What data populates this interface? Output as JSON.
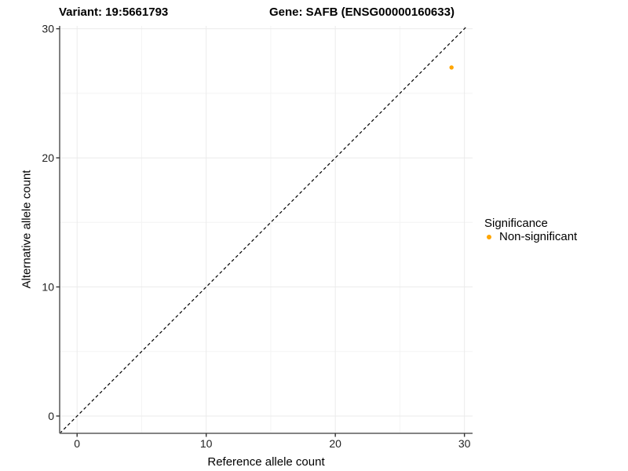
{
  "header": {
    "variant_title": "Variant: 19:5661793",
    "gene_title": "Gene: SAFB (ENSG00000160633)"
  },
  "legend": {
    "title": "Significance",
    "items": [
      {
        "label": "Non-significant",
        "color": "#FFA500"
      }
    ]
  },
  "chart_data": {
    "type": "scatter",
    "title": "Variant: 19:5661793  Gene: SAFB (ENSG00000160633)",
    "xlabel": "Reference allele count",
    "ylabel": "Alternative allele count",
    "xlim": [
      -1.35,
      30.63
    ],
    "ylim": [
      -1.34,
      30.22
    ],
    "x_ticks": [
      0,
      10,
      20,
      30
    ],
    "y_ticks": [
      0,
      10,
      20,
      30
    ],
    "x_minor_ticks": [
      5,
      15,
      25
    ],
    "y_minor_ticks": [
      5,
      15,
      25
    ],
    "grid": true,
    "legend_position": "right",
    "series": [
      {
        "name": "Non-significant",
        "color": "#FFA500",
        "points": [
          {
            "x": 29,
            "y": 27
          }
        ]
      }
    ],
    "reference_line": {
      "kind": "identity",
      "slope": 1,
      "intercept": 0,
      "style": "dashed",
      "color": "#000000"
    }
  },
  "colors": {
    "background": "#ffffff",
    "axis_line": "#737373",
    "tick_mark": "#333333",
    "tick_label": "#1f1f1f",
    "grid_major": "#ebebeb",
    "grid_minor": "#f4f4f4",
    "point": "#FFA500"
  }
}
